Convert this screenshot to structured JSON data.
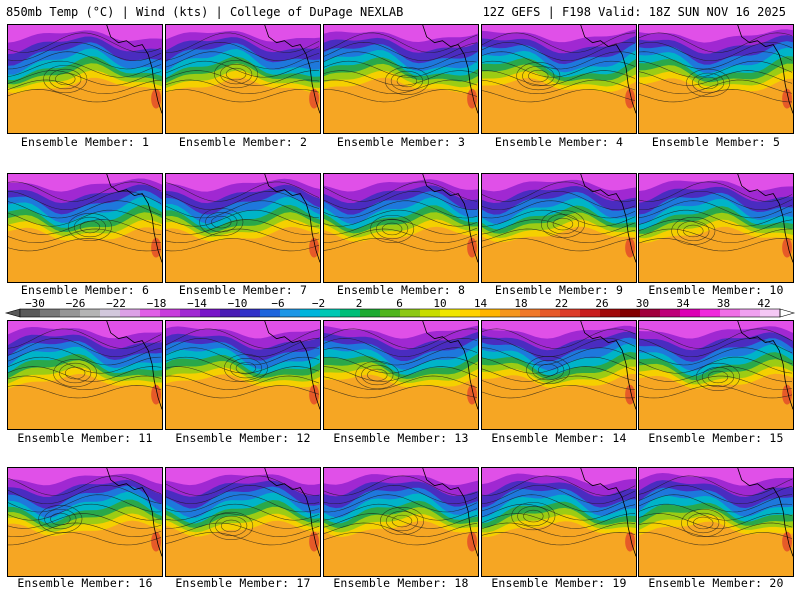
{
  "header": {
    "left": "850mb Temp (°C) | Wind (kts) | College of DuPage NEXLAB",
    "right": "12Z GEFS | F198 Valid: 18Z SUN NOV 16 2025"
  },
  "caption_prefix": "Ensemble Member: ",
  "members": [
    1,
    2,
    3,
    4,
    5,
    6,
    7,
    8,
    9,
    10,
    11,
    12,
    13,
    14,
    15,
    16,
    17,
    18,
    19,
    20
  ],
  "colorbar": {
    "ticks": [
      "-30",
      "-26",
      "-22",
      "-18",
      "-14",
      "-10",
      "-6",
      "-2",
      "2",
      "6",
      "10",
      "14",
      "18",
      "22",
      "26",
      "30",
      "34",
      "38",
      "42"
    ],
    "colors": [
      "#5a5a5a",
      "#787878",
      "#969696",
      "#b4b4b4",
      "#d2c8dc",
      "#dca0e6",
      "#e05fe6",
      "#c83cdc",
      "#a028d2",
      "#7814c8",
      "#4a1cb4",
      "#3232c8",
      "#1e64dc",
      "#1e96e6",
      "#00b4dc",
      "#00c8b4",
      "#00be78",
      "#1eaa32",
      "#50b41e",
      "#8cc814",
      "#c8dc00",
      "#f0e600",
      "#ffd200",
      "#ffb400",
      "#f5961e",
      "#f07828",
      "#e65a28",
      "#dc3c28",
      "#c81e1e",
      "#a00a0a",
      "#820000",
      "#a0003c",
      "#be0078",
      "#dc00b4",
      "#f028dc",
      "#f06ee6",
      "#f0a0f0",
      "#f5c8f5"
    ]
  }
}
